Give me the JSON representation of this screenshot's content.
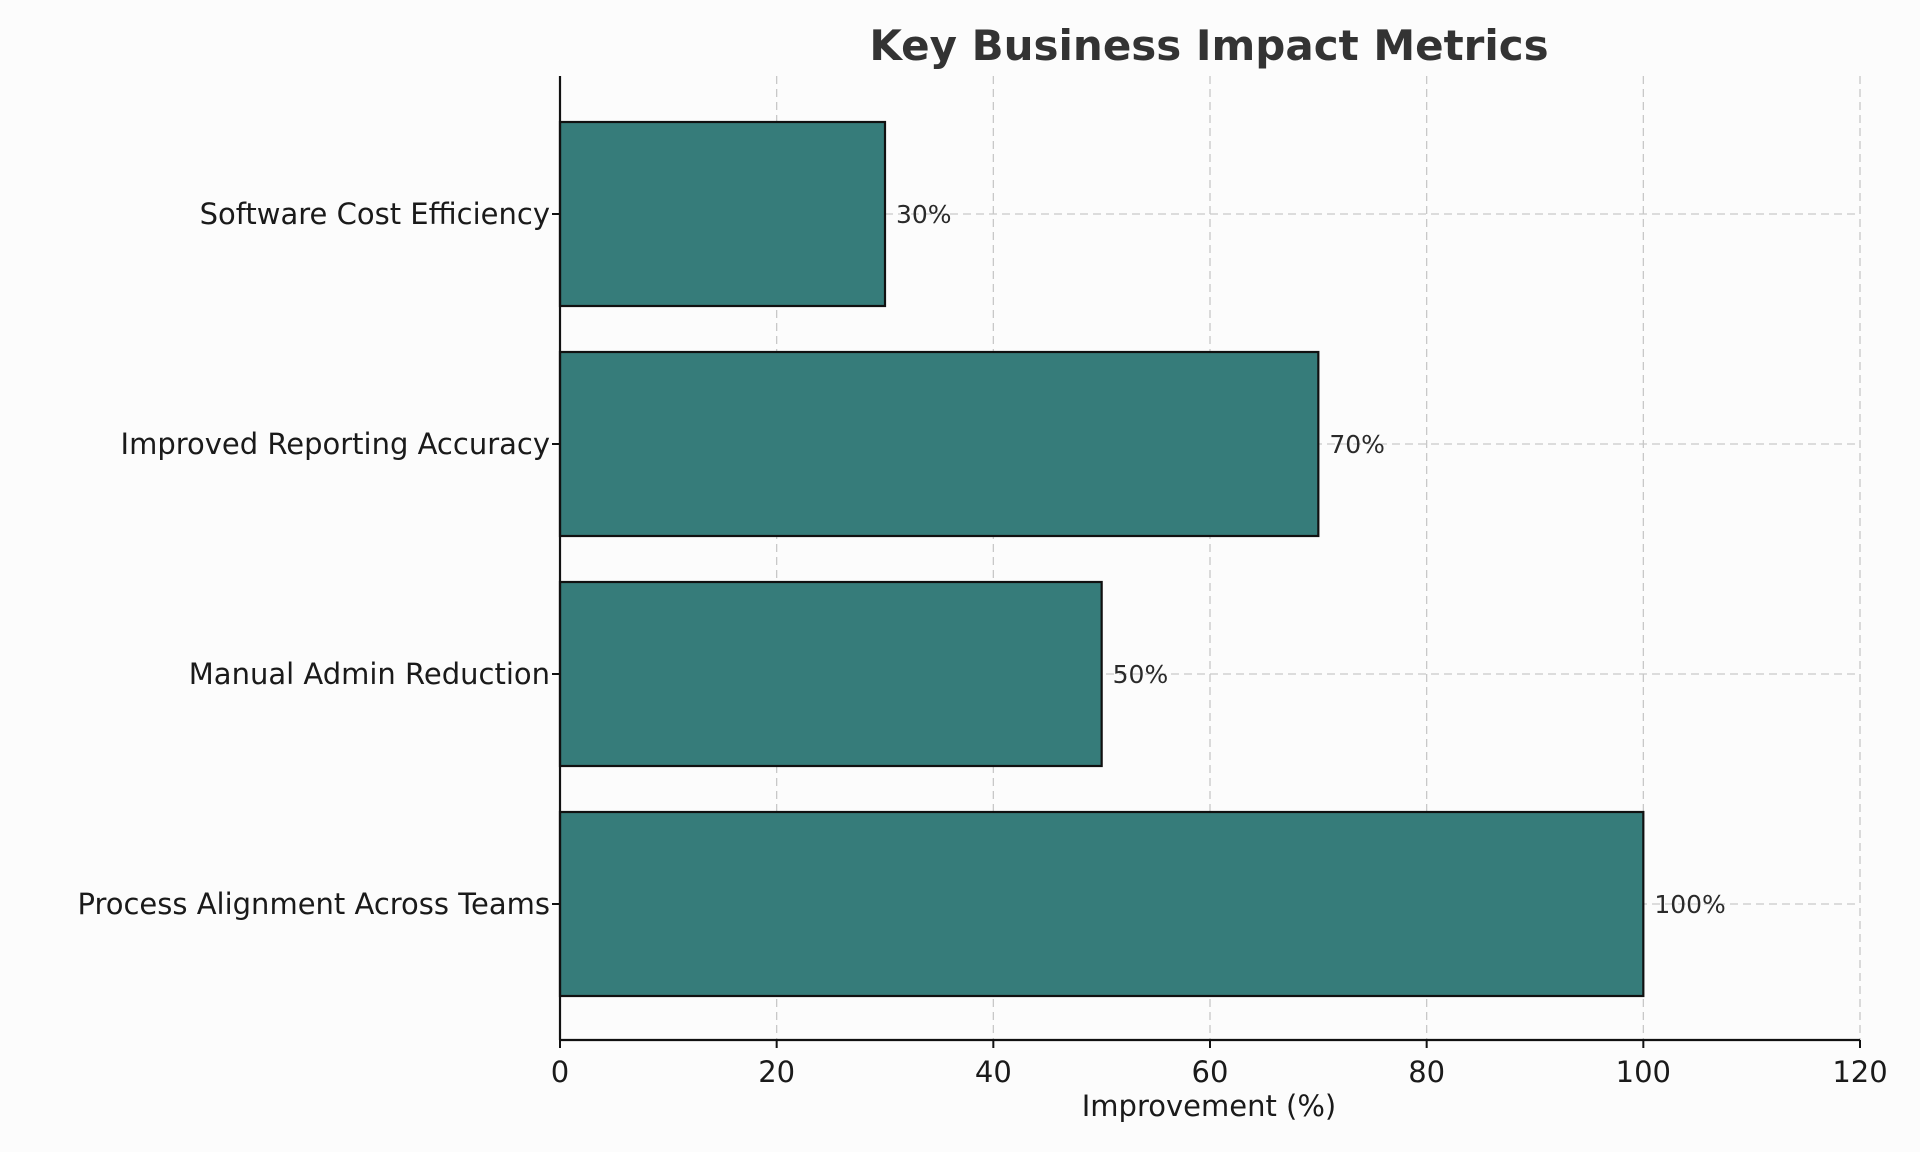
{
  "chart_data": {
    "type": "bar",
    "orientation": "horizontal",
    "title": "Key Business Impact Metrics",
    "xlabel": "Improvement (%)",
    "ylabel": "",
    "categories": [
      "Process Alignment Across Teams",
      "Manual Admin Reduction",
      "Improved Reporting Accuracy",
      "Software Cost Efficiency"
    ],
    "values": [
      100,
      50,
      70,
      30
    ],
    "data_labels": [
      "100%",
      "50%",
      "70%",
      "30%"
    ],
    "xlim": [
      0,
      120
    ],
    "xticks": [
      0,
      20,
      40,
      60,
      80,
      100,
      120
    ],
    "xtick_labels": [
      "0",
      "20",
      "40",
      "60",
      "80",
      "100",
      "120"
    ],
    "grid": true,
    "bar_color": "#367c7a",
    "edge_color": "#111111"
  }
}
